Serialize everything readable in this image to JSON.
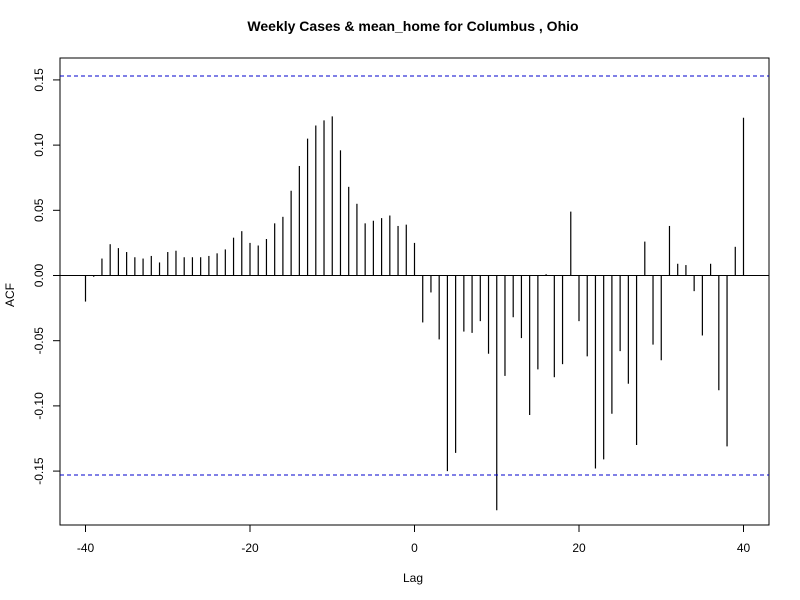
{
  "chart_data": {
    "type": "bar",
    "title": "Weekly Cases & mean_home for Columbus , Ohio",
    "xlabel": "Lag",
    "ylabel": "ACF",
    "x": [
      -40,
      -39,
      -38,
      -37,
      -36,
      -35,
      -34,
      -33,
      -32,
      -31,
      -30,
      -29,
      -28,
      -27,
      -26,
      -25,
      -24,
      -23,
      -22,
      -21,
      -20,
      -19,
      -18,
      -17,
      -16,
      -15,
      -14,
      -13,
      -12,
      -11,
      -10,
      -9,
      -8,
      -7,
      -6,
      -5,
      -4,
      -3,
      -2,
      -1,
      0,
      1,
      2,
      3,
      4,
      5,
      6,
      7,
      8,
      9,
      10,
      11,
      12,
      13,
      14,
      15,
      16,
      17,
      18,
      19,
      20,
      21,
      22,
      23,
      24,
      25,
      26,
      27,
      28,
      29,
      30,
      31,
      32,
      33,
      34,
      35,
      36,
      37,
      38,
      39,
      40
    ],
    "values": [
      -0.02,
      -0.001,
      0.013,
      0.024,
      0.021,
      0.018,
      0.014,
      0.013,
      0.015,
      0.01,
      0.018,
      0.019,
      0.014,
      0.014,
      0.014,
      0.015,
      0.017,
      0.02,
      0.029,
      0.034,
      0.025,
      0.023,
      0.028,
      0.04,
      0.045,
      0.065,
      0.084,
      0.105,
      0.115,
      0.119,
      0.122,
      0.096,
      0.068,
      0.055,
      0.04,
      0.042,
      0.044,
      0.046,
      0.038,
      0.039,
      0.025,
      -0.036,
      -0.013,
      -0.049,
      -0.15,
      -0.136,
      -0.043,
      -0.044,
      -0.035,
      -0.06,
      -0.18,
      -0.077,
      -0.032,
      -0.048,
      -0.107,
      -0.072,
      0.001,
      -0.078,
      -0.068,
      0.049,
      -0.035,
      -0.062,
      -0.148,
      -0.141,
      -0.106,
      -0.058,
      -0.083,
      -0.13,
      0.026,
      -0.053,
      -0.065,
      0.038,
      0.009,
      0.008,
      -0.012,
      -0.046,
      0.009,
      -0.088,
      -0.131,
      0.022,
      0.121
    ],
    "confidence_band": 0.153,
    "xlim": [
      -40,
      40
    ],
    "ylim": [
      -0.18,
      0.15
    ],
    "x_ticks": [
      -40,
      -20,
      0,
      20,
      40
    ],
    "x_tick_labels": [
      "-40",
      "-20",
      "0",
      "20",
      "40"
    ],
    "y_ticks": [
      -0.15,
      -0.1,
      -0.05,
      0.0,
      0.05,
      0.1,
      0.15
    ],
    "y_tick_labels": [
      "-0.15",
      "-0.10",
      "-0.05",
      "0.00",
      "0.05",
      "0.10",
      "0.15"
    ],
    "grid": false,
    "colors": {
      "bars": "#000000",
      "confidence": "#0000cc",
      "zero_line": "#000000",
      "frame": "#000000"
    }
  }
}
